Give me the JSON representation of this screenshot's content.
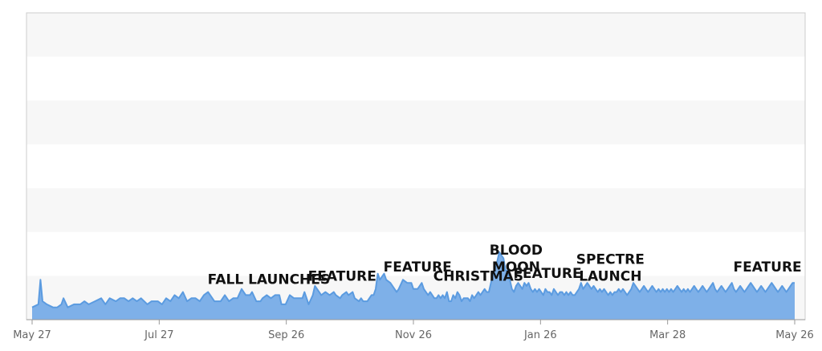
{
  "chart_data": {
    "type": "area",
    "x_axis_tick_labels": [
      "May 27",
      "Jul 27",
      "Sep 26",
      "Nov 26",
      "Jan 26",
      "Mar 28",
      "May 26"
    ],
    "x_range": [
      0,
      364
    ],
    "ylim": [
      0,
      100
    ],
    "grid": "horizontal bands",
    "y_axis_labels_shown": false,
    "colors": {
      "area_fill": "#7eb0e8",
      "line": "#5b9be0",
      "band_light": "#f7f7f7",
      "band_white": "#ffffff",
      "frame": "#cccccc"
    },
    "series": [
      {
        "points": [
          [
            0,
            4
          ],
          [
            3,
            5
          ],
          [
            4,
            13
          ],
          [
            5,
            6
          ],
          [
            7,
            5
          ],
          [
            10,
            4
          ],
          [
            12,
            4
          ],
          [
            14,
            5
          ],
          [
            15,
            7
          ],
          [
            17,
            4
          ],
          [
            20,
            5
          ],
          [
            23,
            5
          ],
          [
            25,
            6
          ],
          [
            27,
            5
          ],
          [
            30,
            6
          ],
          [
            33,
            7
          ],
          [
            35,
            5
          ],
          [
            37,
            7
          ],
          [
            40,
            6
          ],
          [
            42,
            7
          ],
          [
            44,
            7
          ],
          [
            46,
            6
          ],
          [
            48,
            7
          ],
          [
            50,
            6
          ],
          [
            52,
            7
          ],
          [
            55,
            5
          ],
          [
            57,
            6
          ],
          [
            60,
            6
          ],
          [
            62,
            5
          ],
          [
            64,
            7
          ],
          [
            66,
            6
          ],
          [
            68,
            8
          ],
          [
            70,
            7
          ],
          [
            72,
            9
          ],
          [
            74,
            6
          ],
          [
            76,
            7
          ],
          [
            78,
            7
          ],
          [
            80,
            6
          ],
          [
            82,
            8
          ],
          [
            84,
            9
          ],
          [
            87,
            6
          ],
          [
            88,
            6
          ],
          [
            90,
            6
          ],
          [
            92,
            8
          ],
          [
            94,
            6
          ],
          [
            96,
            7
          ],
          [
            98,
            7
          ],
          [
            100,
            10
          ],
          [
            102,
            8
          ],
          [
            104,
            8
          ],
          [
            105,
            9
          ],
          [
            107,
            6
          ],
          [
            109,
            6
          ],
          [
            110,
            7
          ],
          [
            112,
            8
          ],
          [
            114,
            7
          ],
          [
            116,
            8
          ],
          [
            118,
            8
          ],
          [
            119,
            5
          ],
          [
            121,
            5
          ],
          [
            123,
            8
          ],
          [
            125,
            7
          ],
          [
            127,
            7
          ],
          [
            129,
            7
          ],
          [
            130,
            9
          ],
          [
            132,
            5
          ],
          [
            134,
            8
          ],
          [
            135,
            11
          ],
          [
            137,
            9
          ],
          [
            138,
            8
          ],
          [
            140,
            9
          ],
          [
            142,
            8
          ],
          [
            144,
            9
          ],
          [
            145,
            8
          ],
          [
            147,
            7
          ],
          [
            148,
            8
          ],
          [
            150,
            9
          ],
          [
            151,
            8
          ],
          [
            153,
            9
          ],
          [
            154,
            7
          ],
          [
            156,
            6
          ],
          [
            157,
            7
          ],
          [
            158,
            6
          ],
          [
            160,
            6
          ],
          [
            162,
            8
          ],
          [
            163,
            8
          ],
          [
            164,
            10
          ],
          [
            165,
            15
          ],
          [
            166,
            13
          ],
          [
            168,
            15
          ],
          [
            169,
            13
          ],
          [
            171,
            12
          ],
          [
            173,
            10
          ],
          [
            174,
            9
          ],
          [
            175,
            10
          ],
          [
            177,
            13
          ],
          [
            179,
            12
          ],
          [
            181,
            12
          ],
          [
            182,
            10
          ],
          [
            184,
            10
          ],
          [
            186,
            12
          ],
          [
            187,
            10
          ],
          [
            189,
            8
          ],
          [
            190,
            9
          ],
          [
            192,
            7
          ],
          [
            193,
            7
          ],
          [
            194,
            8
          ],
          [
            195,
            7
          ],
          [
            196,
            8
          ],
          [
            197,
            7
          ],
          [
            198,
            9
          ],
          [
            199,
            6
          ],
          [
            200,
            6
          ],
          [
            201,
            8
          ],
          [
            202,
            7
          ],
          [
            203,
            9
          ],
          [
            204,
            8
          ],
          [
            205,
            6
          ],
          [
            206,
            7
          ],
          [
            208,
            7
          ],
          [
            209,
            6
          ],
          [
            210,
            8
          ],
          [
            211,
            7
          ],
          [
            212,
            8
          ],
          [
            213,
            9
          ],
          [
            214,
            8
          ],
          [
            215,
            9
          ],
          [
            216,
            10
          ],
          [
            217,
            9
          ],
          [
            218,
            9
          ],
          [
            220,
            15
          ],
          [
            221,
            17
          ],
          [
            222,
            19
          ],
          [
            223,
            22
          ],
          [
            224,
            21
          ],
          [
            225,
            20
          ],
          [
            226,
            16
          ],
          [
            227,
            16
          ],
          [
            228,
            13
          ],
          [
            229,
            10
          ],
          [
            230,
            9
          ],
          [
            231,
            11
          ],
          [
            232,
            12
          ],
          [
            233,
            11
          ],
          [
            234,
            10
          ],
          [
            235,
            12
          ],
          [
            236,
            11
          ],
          [
            237,
            12
          ],
          [
            238,
            10
          ],
          [
            239,
            9
          ],
          [
            240,
            10
          ],
          [
            241,
            9
          ],
          [
            242,
            10
          ],
          [
            243,
            9
          ],
          [
            244,
            8
          ],
          [
            245,
            10
          ],
          [
            246,
            9
          ],
          [
            247,
            9
          ],
          [
            248,
            8
          ],
          [
            249,
            10
          ],
          [
            250,
            9
          ],
          [
            251,
            8
          ],
          [
            252,
            9
          ],
          [
            253,
            9
          ],
          [
            254,
            8
          ],
          [
            255,
            9
          ],
          [
            256,
            8
          ],
          [
            257,
            9
          ],
          [
            258,
            8
          ],
          [
            259,
            8
          ],
          [
            260,
            9
          ],
          [
            261,
            10
          ],
          [
            262,
            12
          ],
          [
            263,
            10
          ],
          [
            264,
            11
          ],
          [
            265,
            12
          ],
          [
            266,
            11
          ],
          [
            267,
            10
          ],
          [
            268,
            11
          ],
          [
            269,
            10
          ],
          [
            270,
            9
          ],
          [
            271,
            10
          ],
          [
            272,
            9
          ],
          [
            273,
            10
          ],
          [
            274,
            9
          ],
          [
            275,
            8
          ],
          [
            276,
            9
          ],
          [
            277,
            8
          ],
          [
            278,
            9
          ],
          [
            279,
            9
          ],
          [
            280,
            10
          ],
          [
            281,
            9
          ],
          [
            282,
            10
          ],
          [
            283,
            9
          ],
          [
            284,
            8
          ],
          [
            285,
            9
          ],
          [
            286,
            10
          ],
          [
            287,
            12
          ],
          [
            288,
            11
          ],
          [
            289,
            10
          ],
          [
            290,
            9
          ],
          [
            291,
            10
          ],
          [
            292,
            11
          ],
          [
            293,
            10
          ],
          [
            294,
            9
          ],
          [
            295,
            10
          ],
          [
            296,
            11
          ],
          [
            297,
            10
          ],
          [
            298,
            9
          ],
          [
            299,
            10
          ],
          [
            300,
            9
          ],
          [
            301,
            10
          ],
          [
            302,
            9
          ],
          [
            303,
            10
          ],
          [
            304,
            9
          ],
          [
            305,
            10
          ],
          [
            306,
            9
          ],
          [
            307,
            10
          ],
          [
            308,
            11
          ],
          [
            309,
            10
          ],
          [
            310,
            9
          ],
          [
            311,
            10
          ],
          [
            312,
            9
          ],
          [
            313,
            10
          ],
          [
            314,
            9
          ],
          [
            315,
            10
          ],
          [
            316,
            11
          ],
          [
            317,
            10
          ],
          [
            318,
            9
          ],
          [
            319,
            10
          ],
          [
            320,
            11
          ],
          [
            321,
            10
          ],
          [
            322,
            9
          ],
          [
            323,
            10
          ],
          [
            324,
            11
          ],
          [
            325,
            12
          ],
          [
            326,
            10
          ],
          [
            327,
            9
          ],
          [
            328,
            10
          ],
          [
            329,
            11
          ],
          [
            330,
            10
          ],
          [
            331,
            9
          ],
          [
            332,
            10
          ],
          [
            333,
            11
          ],
          [
            334,
            12
          ],
          [
            335,
            10
          ],
          [
            336,
            9
          ],
          [
            337,
            10
          ],
          [
            338,
            11
          ],
          [
            339,
            10
          ],
          [
            340,
            9
          ],
          [
            341,
            10
          ],
          [
            342,
            11
          ],
          [
            343,
            12
          ],
          [
            344,
            11
          ],
          [
            345,
            10
          ],
          [
            346,
            9
          ],
          [
            347,
            10
          ],
          [
            348,
            11
          ],
          [
            349,
            10
          ],
          [
            350,
            9
          ],
          [
            351,
            10
          ],
          [
            352,
            11
          ],
          [
            353,
            12
          ],
          [
            354,
            11
          ],
          [
            355,
            10
          ],
          [
            356,
            9
          ],
          [
            357,
            10
          ],
          [
            358,
            11
          ],
          [
            359,
            10
          ],
          [
            360,
            9
          ],
          [
            361,
            10
          ],
          [
            362,
            11
          ],
          [
            363,
            12
          ],
          [
            364,
            12
          ]
        ]
      }
    ],
    "annotations": [
      {
        "lines": [
          "FALL LAUNCHES"
        ],
        "x": 113
      },
      {
        "lines": [
          "FEATURE"
        ],
        "x": 148
      },
      {
        "lines": [
          "FEATURE"
        ],
        "x": 184
      },
      {
        "lines": [
          "CHRISTMAS"
        ],
        "x": 213
      },
      {
        "lines": [
          "BLOOD",
          "MOON"
        ],
        "x": 231
      },
      {
        "lines": [
          "FEATURE"
        ],
        "x": 246
      },
      {
        "lines": [
          "SPECTRE",
          "LAUNCH"
        ],
        "x": 276
      },
      {
        "lines": [
          "FEATURE"
        ],
        "x": 351
      }
    ]
  }
}
